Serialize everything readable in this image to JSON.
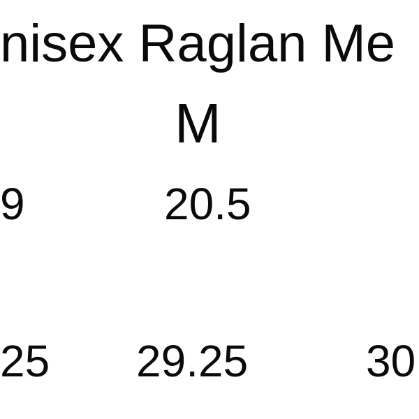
{
  "title": "nisex Raglan Me",
  "size_header": "M",
  "rows": [
    {
      "left": "9",
      "m": "20.5"
    },
    {
      "left": "25",
      "m": "29.25",
      "right": "30"
    }
  ]
}
